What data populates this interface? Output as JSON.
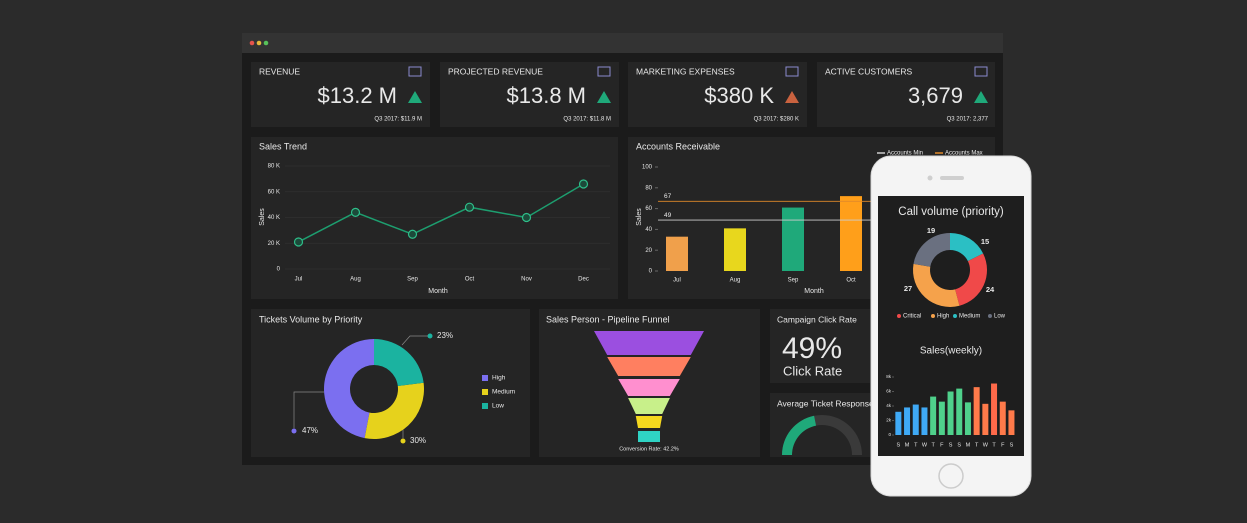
{
  "window": {
    "dots": [
      "#e5534b",
      "#e6b93b",
      "#57c15a"
    ]
  },
  "kpis": [
    {
      "title": "REVENUE",
      "value": "$13.2 M",
      "note": "Q3 2017: $11.9 M",
      "trend_color": "#1fa97a"
    },
    {
      "title": "PROJECTED REVENUE",
      "value": "$13.8 M",
      "note": "Q3 2017: $11.8 M",
      "trend_color": "#1fa97a"
    },
    {
      "title": "MARKETING EXPENSES",
      "value": "$380 K",
      "note": "Q3 2017: $280 K",
      "trend_color": "#c9623f"
    },
    {
      "title": "ACTIVE CUSTOMERS",
      "value": "3,679",
      "note": "Q3 2017: 2,377",
      "trend_color": "#1fa97a"
    }
  ],
  "chart_data": [
    {
      "type": "line",
      "title": "Sales Trend",
      "x_label": "Month",
      "y_label": "Sales",
      "categories": [
        "Jul",
        "Aug",
        "Sep",
        "Oct",
        "Nov",
        "Dec"
      ],
      "values": [
        21000,
        44000,
        27000,
        48000,
        40000,
        66000
      ],
      "color": "#1d9e6f",
      "ylim": [
        0,
        80000
      ],
      "yticks": [
        0,
        {
          "value": 20000,
          "label": "20 K"
        },
        {
          "value": 40000,
          "label": "40 K"
        },
        {
          "value": 60000,
          "label": "60 K"
        },
        {
          "value": 80000,
          "label": "80 K"
        }
      ],
      "grid": true
    },
    {
      "type": "bar",
      "title": "Accounts Receivable",
      "x_label": "Month",
      "y_label": "Sales",
      "categories": [
        "Jul",
        "Aug",
        "Sep",
        "Oct"
      ],
      "values": [
        33,
        41,
        61,
        72
      ],
      "colors": [
        "#f0a04b",
        "#e8d71d",
        "#1fa97a",
        "#ff9f1a"
      ],
      "ylim": [
        0,
        100
      ],
      "yticks": [
        0,
        20,
        40,
        60,
        80,
        100
      ],
      "reference_lines": [
        {
          "name": "Accounts Min",
          "value": 49,
          "color": "#cccccc"
        },
        {
          "name": "Accounts Max",
          "value": 67,
          "color": "#e08a2a"
        }
      ]
    },
    {
      "type": "donut",
      "title": "Tickets Volume by Priority",
      "categories": [
        "High",
        "Medium",
        "Low"
      ],
      "values": [
        47,
        30,
        23
      ],
      "value_labels": [
        "47%",
        "30%",
        "23%"
      ],
      "colors": [
        "#7b6ff0",
        "#e6d21c",
        "#1bb3a0"
      ]
    },
    {
      "type": "funnel",
      "title": "Sales Person - Pipeline Funnel",
      "values": [
        100,
        76,
        56,
        38,
        24,
        20
      ],
      "colors": [
        "#9b4fe0",
        "#ff7f60",
        "#ff8fcf",
        "#c8f08a",
        "#f5d81e",
        "#2fd3c4"
      ],
      "footer": "Conversion Rate: 42.2%"
    },
    {
      "type": "gauge",
      "title": "Average Ticket Response"
    },
    {
      "type": "donut",
      "title": "Call volume (priority)",
      "categories": [
        "Critical",
        "High",
        "Medium",
        "Low"
      ],
      "values": [
        24,
        27,
        15,
        19
      ],
      "colors": [
        "#f04949",
        "#f5a24b",
        "#2bbfc4",
        "#6a7080"
      ]
    },
    {
      "type": "bar",
      "title": "Sales(weekly)",
      "categories": [
        "S",
        "M",
        "T",
        "W",
        "T",
        "F",
        "S",
        "S",
        "M",
        "T",
        "W",
        "T",
        "F",
        "S"
      ],
      "values": [
        3200,
        3800,
        4200,
        3800,
        5300,
        4600,
        6000,
        6400,
        4500,
        6600,
        4300,
        7100,
        4600,
        3400
      ],
      "colors": [
        "#3fa9f5",
        "#3fa9f5",
        "#3fa9f5",
        "#3fa9f5",
        "#4fd18b",
        "#4fd18b",
        "#4fd18b",
        "#4fd18b",
        "#4fd18b",
        "#ff7a4a",
        "#ff7a4a",
        "#ff6a4a",
        "#ff7a4a",
        "#ff7a4a"
      ],
      "ylim": [
        0,
        8000
      ],
      "yticks": [
        0,
        {
          "value": 2000,
          "label": "2k"
        },
        {
          "value": 4000,
          "label": "4k"
        },
        {
          "value": 6000,
          "label": "6k"
        },
        {
          "value": 8000,
          "label": "8k"
        }
      ]
    }
  ],
  "campaign": {
    "title": "Campaign Click Rate",
    "value": "49%",
    "label": "Click Rate"
  }
}
